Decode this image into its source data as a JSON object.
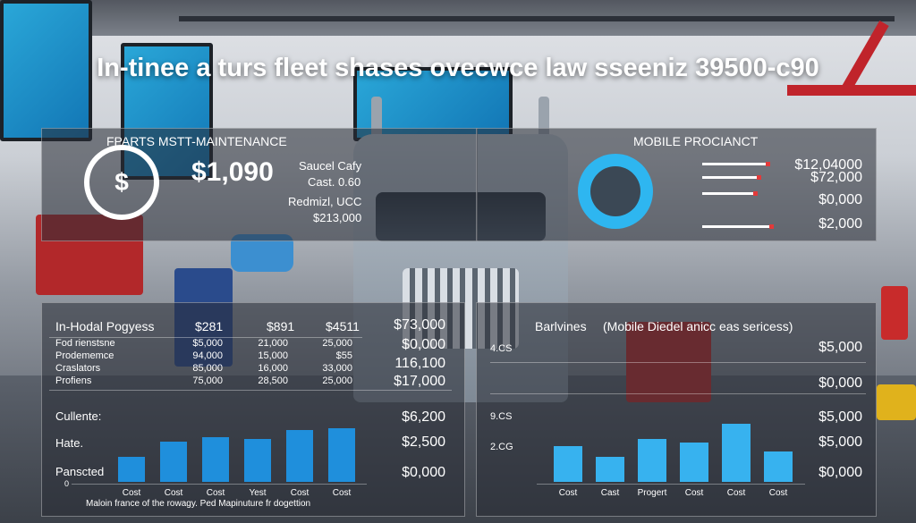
{
  "title": "In-tinee a turs fleet shases ovecwce law sseeniz 39500-c90",
  "top_left_panel": {
    "heading": "FPARTS MSTT-MAINTENANCE",
    "icon": "dollar-circle-icon",
    "icon_glyph": "$",
    "big_value": "$1,090",
    "lines": [
      "Saucel Cafy",
      "Cast. 0.60",
      "Redmizl, UCC",
      "$213,000"
    ]
  },
  "top_right_panel": {
    "heading": "MOBILE PROCIANCT",
    "values": [
      "$12,04000",
      "$72,000",
      "$0,000",
      "$2,000"
    ]
  },
  "bottom_left_panel": {
    "header": [
      "In-Hodal Pogyess",
      "$281",
      "$891",
      "$4511",
      "$73,000"
    ],
    "rows": [
      {
        "label": "Fod rienstsne",
        "c1": "$5,000",
        "c2": "21,000",
        "c3": "25,000",
        "total": "$0,000"
      },
      {
        "label": "Prodememce",
        "c1": "94,000",
        "c2": "15,000",
        "c3": "$55",
        "total": "116,100"
      },
      {
        "label": "Craslators",
        "c1": "85,000",
        "c2": "16,000",
        "c3": "33,000",
        "total": ""
      },
      {
        "label": "Profiens",
        "c1": "75,000",
        "c2": "28,500",
        "c3": "25,000",
        "total": "$17,000"
      }
    ],
    "chart_labels": [
      "Cullente:",
      "Hate.",
      "Panscted"
    ],
    "chart_values_text": [
      "$6,200",
      "$2,500",
      "$0,000"
    ],
    "zero_label": "0",
    "x_labels": [
      "Cost",
      "Cost",
      "Cost",
      "Yest",
      "Cost",
      "Cost"
    ],
    "footer": "Maloin france of the rowagy. Ped     Mapinuture fr dogettion"
  },
  "bottom_right_panel": {
    "heading": "Barlvines",
    "subheading": "(Mobile Diedel anicc eas sericess)",
    "y_labels": [
      "4.CS",
      "9.CS",
      "2.CG"
    ],
    "right_values": [
      "$5,000",
      "$0,000",
      "$5,000",
      "$5,000",
      "$0,000"
    ],
    "x_labels": [
      "Cost",
      "Cast",
      "Progert",
      "Cost",
      "Cost",
      "Cost"
    ]
  },
  "chart_data": [
    {
      "type": "bar",
      "categories": [
        "Cost",
        "Cost",
        "Cost",
        "Yest",
        "Cost",
        "Cost"
      ],
      "values": [
        28,
        45,
        50,
        48,
        58,
        60
      ],
      "ylim": [
        0,
        100
      ]
    },
    {
      "type": "bar",
      "categories": [
        "Cost",
        "Cast",
        "Progert",
        "Cost",
        "Cost",
        "Cost"
      ],
      "values": [
        40,
        28,
        48,
        44,
        65,
        34
      ],
      "ylim": [
        0,
        100
      ]
    }
  ],
  "colors": {
    "bar": "#1f8fdc",
    "bar_light": "#37b2ef",
    "accent_red": "#c0242b"
  }
}
